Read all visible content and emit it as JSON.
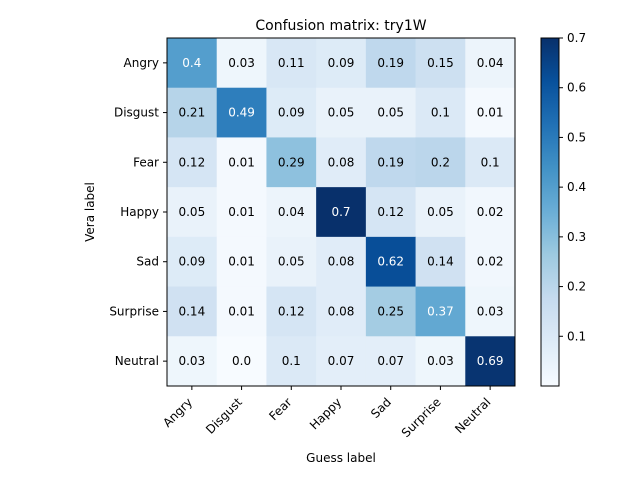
{
  "chart_data": {
    "type": "heatmap",
    "title": "Confusion matrix: try1W",
    "xlabel": "Guess label",
    "ylabel": "Vera label",
    "x_categories": [
      "Angry",
      "Disgust",
      "Fear",
      "Happy",
      "Sad",
      "Surprise",
      "Neutral"
    ],
    "y_categories": [
      "Angry",
      "Disgust",
      "Fear",
      "Happy",
      "Sad",
      "Surprise",
      "Neutral"
    ],
    "values": [
      [
        0.4,
        0.03,
        0.11,
        0.09,
        0.19,
        0.15,
        0.04
      ],
      [
        0.21,
        0.49,
        0.09,
        0.05,
        0.05,
        0.1,
        0.01
      ],
      [
        0.12,
        0.01,
        0.29,
        0.08,
        0.19,
        0.2,
        0.1
      ],
      [
        0.05,
        0.01,
        0.04,
        0.7,
        0.12,
        0.05,
        0.02
      ],
      [
        0.09,
        0.01,
        0.05,
        0.08,
        0.62,
        0.14,
        0.02
      ],
      [
        0.14,
        0.01,
        0.12,
        0.08,
        0.25,
        0.37,
        0.03
      ],
      [
        0.03,
        0.0,
        0.1,
        0.07,
        0.07,
        0.03,
        0.69
      ]
    ],
    "cell_labels": [
      [
        "0.4",
        "0.03",
        "0.11",
        "0.09",
        "0.19",
        "0.15",
        "0.04"
      ],
      [
        "0.21",
        "0.49",
        "0.09",
        "0.05",
        "0.05",
        "0.1",
        "0.01"
      ],
      [
        "0.12",
        "0.01",
        "0.29",
        "0.08",
        "0.19",
        "0.2",
        "0.1"
      ],
      [
        "0.05",
        "0.01",
        "0.04",
        "0.7",
        "0.12",
        "0.05",
        "0.02"
      ],
      [
        "0.09",
        "0.01",
        "0.05",
        "0.08",
        "0.62",
        "0.14",
        "0.02"
      ],
      [
        "0.14",
        "0.01",
        "0.12",
        "0.08",
        "0.25",
        "0.37",
        "0.03"
      ],
      [
        "0.03",
        "0.0",
        "0.1",
        "0.07",
        "0.07",
        "0.03",
        "0.69"
      ]
    ],
    "colormap": "Blues",
    "color_range": [
      0.0,
      0.7
    ],
    "colorbar_ticks": [
      "0.1",
      "0.2",
      "0.3",
      "0.4",
      "0.5",
      "0.6",
      "0.7"
    ],
    "colorbar_tick_values": [
      0.1,
      0.2,
      0.3,
      0.4,
      0.5,
      0.6,
      0.7
    ],
    "x_tick_rotation_deg": 45,
    "grid": false
  }
}
